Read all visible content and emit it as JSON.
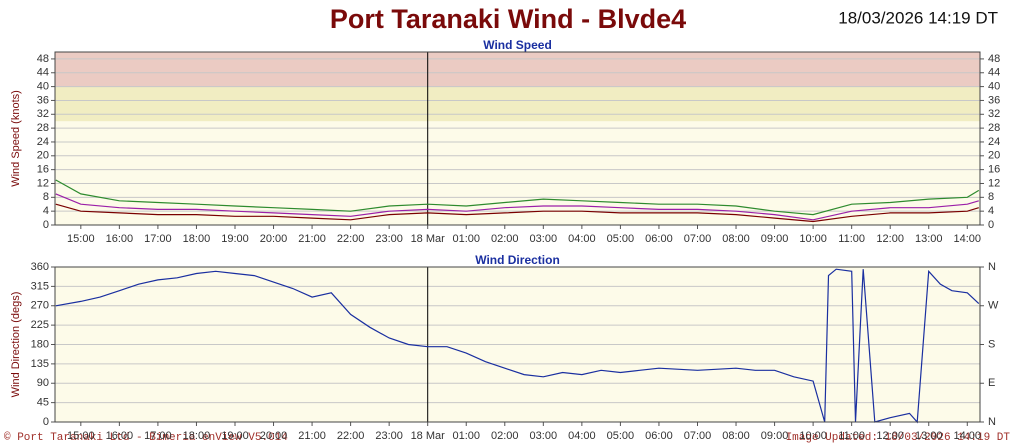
{
  "page": {
    "title": "Port Taranaki Wind - Blvde4",
    "timestamp": "18/03/2026 14:19 DT",
    "copyright": "© Port Taranaki Ltd - Bimeria enView V5.014",
    "updated": "Image Updated: 18/03/2026 14:19 DT"
  },
  "chart_data": [
    {
      "type": "line",
      "title": "Wind Speed",
      "y_label": "Wind Speed (knots)",
      "x": [
        14.35,
        15,
        16,
        17,
        18,
        19,
        20,
        21,
        22,
        23,
        24,
        25,
        26,
        27,
        28,
        29,
        30,
        31,
        32,
        33,
        34,
        35,
        36,
        37,
        38,
        38.3
      ],
      "series": [
        {
          "color": "#2e8b2e",
          "values": [
            13,
            9,
            7,
            6.5,
            6,
            5.5,
            5,
            4.5,
            4,
            5.5,
            6,
            5.5,
            6.5,
            7.5,
            7,
            6.5,
            6,
            6,
            5.5,
            4,
            3,
            6,
            6.5,
            7.5,
            8,
            10
          ]
        },
        {
          "color": "#9b1fa8",
          "values": [
            9,
            6,
            5,
            4.5,
            4.5,
            4,
            3.5,
            3,
            2.5,
            4,
            4.5,
            4,
            5,
            5.5,
            5.5,
            5,
            4.5,
            4.5,
            4,
            3,
            1.5,
            4,
            5,
            5,
            6,
            7
          ]
        },
        {
          "color": "#7a0000",
          "values": [
            6,
            4,
            3.5,
            3,
            3,
            2.5,
            2.5,
            2,
            1.5,
            3,
            3.5,
            3,
            3.5,
            4,
            4,
            3.5,
            3.5,
            3.5,
            3,
            2,
            1,
            2.5,
            3.5,
            3.5,
            4,
            5
          ]
        }
      ],
      "bands": [
        {
          "from": 30,
          "to": 40,
          "color": "#f1edc2"
        },
        {
          "from": 40,
          "to": 50,
          "color": "#ebcbc3"
        }
      ],
      "xlim": [
        14.33,
        38.33
      ],
      "xticks": [
        {
          "value": 15,
          "label": "15:00"
        },
        {
          "value": 16,
          "label": "16:00"
        },
        {
          "value": 17,
          "label": "17:00"
        },
        {
          "value": 18,
          "label": "18:00"
        },
        {
          "value": 19,
          "label": "19:00"
        },
        {
          "value": 20,
          "label": "20:00"
        },
        {
          "value": 21,
          "label": "21:00"
        },
        {
          "value": 22,
          "label": "22:00"
        },
        {
          "value": 23,
          "label": "23:00"
        },
        {
          "value": 24,
          "label": "18 Mar"
        },
        {
          "value": 25,
          "label": "01:00"
        },
        {
          "value": 26,
          "label": "02:00"
        },
        {
          "value": 27,
          "label": "03:00"
        },
        {
          "value": 28,
          "label": "04:00"
        },
        {
          "value": 29,
          "label": "05:00"
        },
        {
          "value": 30,
          "label": "06:00"
        },
        {
          "value": 31,
          "label": "07:00"
        },
        {
          "value": 32,
          "label": "08:00"
        },
        {
          "value": 33,
          "label": "09:00"
        },
        {
          "value": 34,
          "label": "10:00"
        },
        {
          "value": 35,
          "label": "11:00"
        },
        {
          "value": 36,
          "label": "12:00"
        },
        {
          "value": 37,
          "label": "13:00"
        },
        {
          "value": 38,
          "label": "14:00"
        }
      ],
      "ylim": [
        0,
        50
      ],
      "yticks": [
        0,
        4,
        8,
        12,
        16,
        20,
        24,
        28,
        32,
        36,
        40,
        44,
        48
      ],
      "y2lim": [
        0,
        50
      ],
      "y2ticks": [
        0,
        4,
        8,
        12,
        16,
        20,
        24,
        28,
        32,
        36,
        40,
        44,
        48
      ],
      "grid": true
    },
    {
      "type": "line",
      "title": "Wind Direction",
      "y_label": "Wind Direction (degs)",
      "x": [
        14.35,
        15,
        15.5,
        16,
        16.5,
        17,
        17.5,
        18,
        18.5,
        19,
        19.5,
        20,
        20.5,
        21,
        21.5,
        22,
        22.5,
        23,
        23.5,
        24,
        24.5,
        25,
        25.5,
        26,
        26.5,
        27,
        27.5,
        28,
        28.5,
        29,
        29.5,
        30,
        31,
        32,
        32.5,
        33,
        33.5,
        34,
        34.3,
        34.4,
        34.6,
        35,
        35.1,
        35.3,
        35.6,
        36,
        36.5,
        36.7,
        37,
        37.3,
        37.6,
        38,
        38.3
      ],
      "series": [
        {
          "color": "#1a2fa0",
          "values": [
            270,
            280,
            290,
            305,
            320,
            330,
            335,
            345,
            350,
            345,
            340,
            325,
            310,
            290,
            300,
            250,
            220,
            195,
            180,
            175,
            175,
            160,
            140,
            125,
            110,
            105,
            115,
            110,
            120,
            115,
            120,
            125,
            120,
            125,
            120,
            120,
            105,
            95,
            0,
            340,
            355,
            350,
            0,
            355,
            0,
            10,
            20,
            0,
            350,
            320,
            305,
            300,
            275
          ]
        }
      ],
      "xlim": [
        14.33,
        38.33
      ],
      "xticks": [
        {
          "value": 15,
          "label": "15:00"
        },
        {
          "value": 16,
          "label": "16:00"
        },
        {
          "value": 17,
          "label": "17:00"
        },
        {
          "value": 18,
          "label": "18:00"
        },
        {
          "value": 19,
          "label": "19:00"
        },
        {
          "value": 20,
          "label": "20:00"
        },
        {
          "value": 21,
          "label": "21:00"
        },
        {
          "value": 22,
          "label": "22:00"
        },
        {
          "value": 23,
          "label": "23:00"
        },
        {
          "value": 24,
          "label": "18 Mar"
        },
        {
          "value": 25,
          "label": "01:00"
        },
        {
          "value": 26,
          "label": "02:00"
        },
        {
          "value": 27,
          "label": "03:00"
        },
        {
          "value": 28,
          "label": "04:00"
        },
        {
          "value": 29,
          "label": "05:00"
        },
        {
          "value": 30,
          "label": "06:00"
        },
        {
          "value": 31,
          "label": "07:00"
        },
        {
          "value": 32,
          "label": "08:00"
        },
        {
          "value": 33,
          "label": "09:00"
        },
        {
          "value": 34,
          "label": "10:00"
        },
        {
          "value": 35,
          "label": "11:00"
        },
        {
          "value": 36,
          "label": "12:00"
        },
        {
          "value": 37,
          "label": "13:00"
        },
        {
          "value": 38,
          "label": "14:00"
        }
      ],
      "ylim": [
        0,
        360
      ],
      "yticks": [
        0,
        45,
        90,
        135,
        180,
        225,
        270,
        315,
        360
      ],
      "y2lim": [
        0,
        360
      ],
      "y2ticks": [
        {
          "value": 0,
          "label": "N"
        },
        {
          "value": 90,
          "label": "E"
        },
        {
          "value": 180,
          "label": "S"
        },
        {
          "value": 270,
          "label": "W"
        },
        {
          "value": 360,
          "label": "N"
        }
      ],
      "grid": true
    }
  ]
}
